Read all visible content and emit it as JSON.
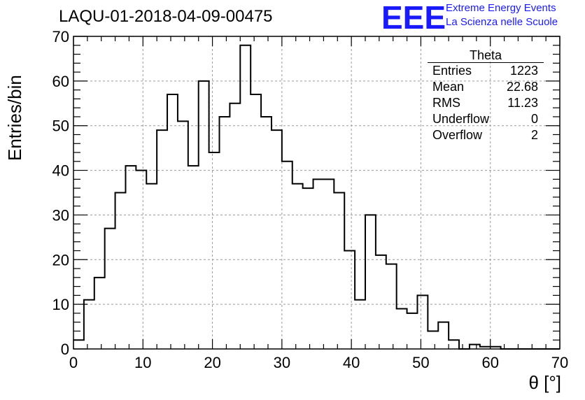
{
  "chart_data": {
    "type": "bar",
    "title": "LAQU-01-2018-04-09-00475",
    "xlabel": "θ [°]",
    "ylabel": "Entries/bin",
    "xlim": [
      0,
      70
    ],
    "ylim": [
      0,
      70
    ],
    "x_ticks": [
      "0",
      "10",
      "20",
      "30",
      "40",
      "50",
      "60",
      "70"
    ],
    "y_ticks": [
      "0",
      "10",
      "20",
      "30",
      "40",
      "50",
      "60",
      "70"
    ],
    "grid": true,
    "bin_width": 1.5,
    "bin_start": 0,
    "values": [
      2,
      11,
      16,
      27,
      35,
      41,
      40,
      37,
      49,
      57,
      51,
      41,
      60,
      44,
      52,
      55,
      68,
      57,
      52,
      49,
      42,
      37,
      36,
      38,
      38,
      35,
      22,
      11,
      30,
      21,
      19,
      9,
      8,
      12,
      4,
      6,
      2,
      0,
      1,
      0.5,
      0.5,
      0,
      0,
      0,
      0,
      0,
      0
    ]
  },
  "stats_box": {
    "title": "Theta",
    "rows": [
      {
        "label": "Entries",
        "value": "1223"
      },
      {
        "label": "Mean",
        "value": "22.68"
      },
      {
        "label": "RMS",
        "value": "11.23"
      },
      {
        "label": "Underflow",
        "value": "0"
      },
      {
        "label": "Overflow",
        "value": "2"
      }
    ]
  },
  "logo": {
    "mark": "EEE",
    "line1": "Extreme Energy Events",
    "line2": "La Scienza nelle Scuole",
    "color": "#1a1aff"
  }
}
